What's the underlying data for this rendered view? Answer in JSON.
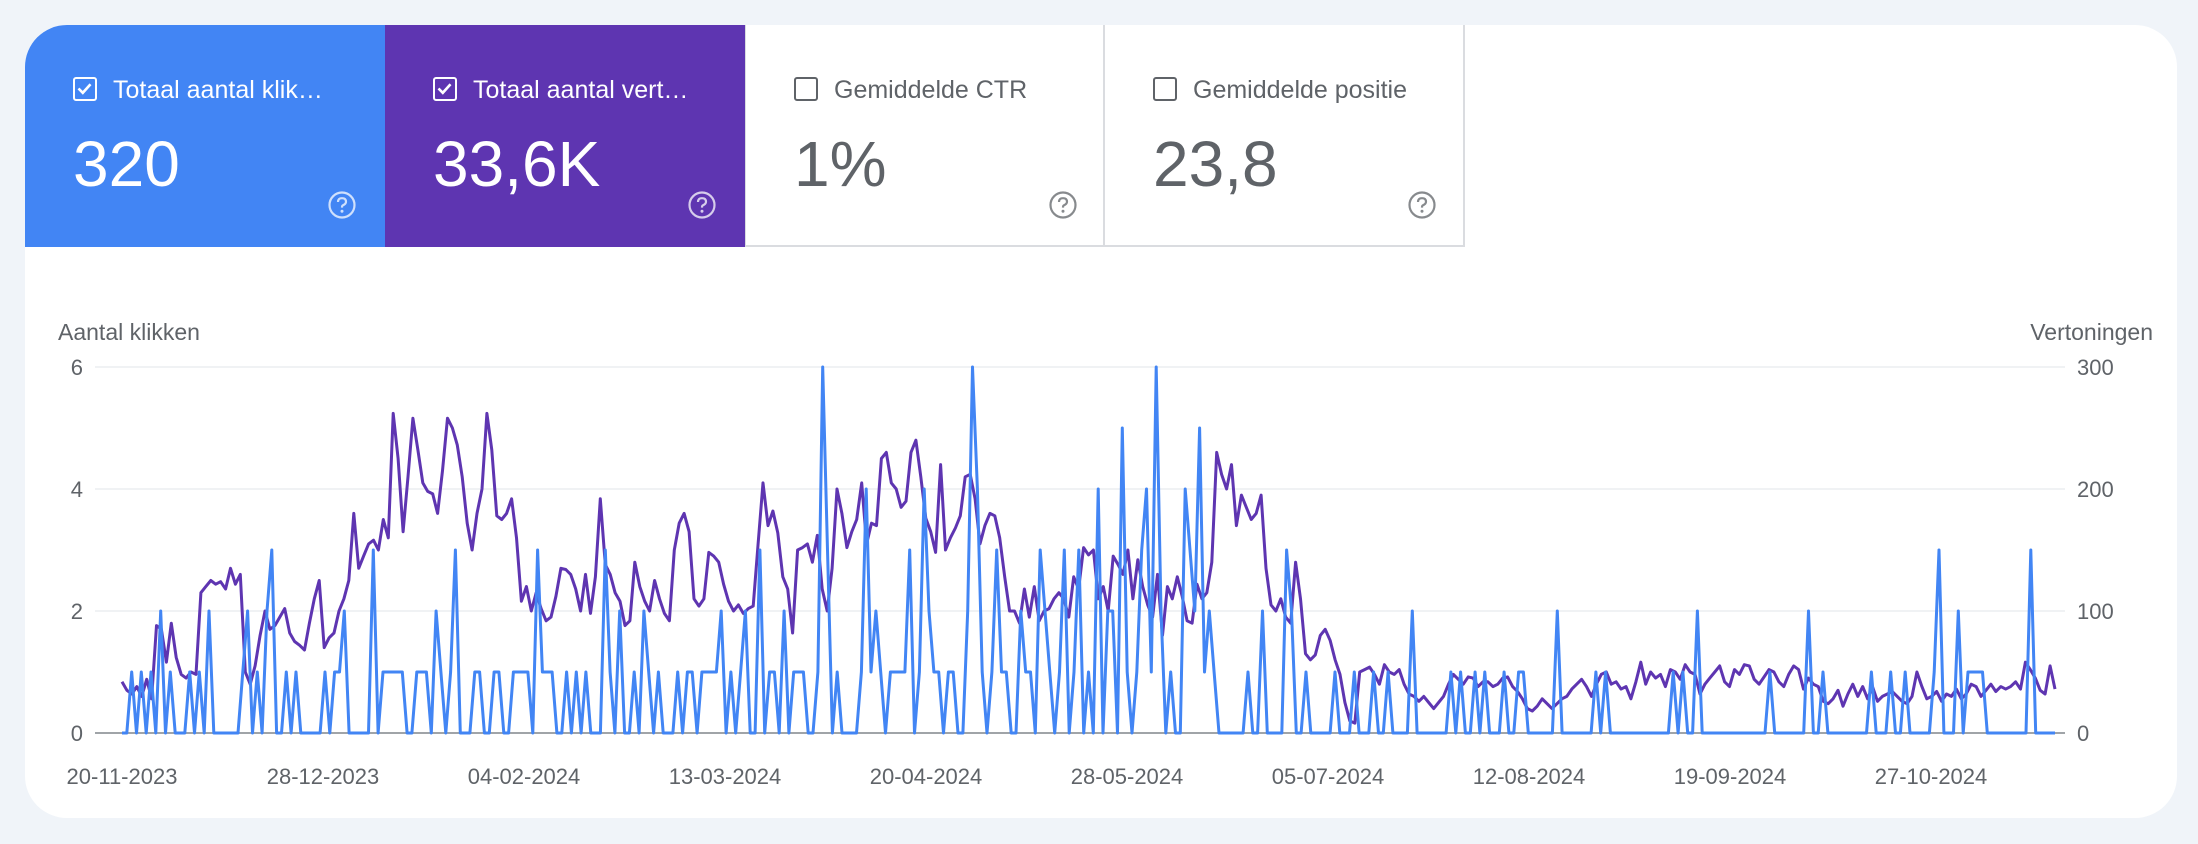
{
  "metrics": {
    "clicks": {
      "label": "Totaal aantal klik…",
      "value": "320",
      "checked": true,
      "color": "#4285f4"
    },
    "impressions": {
      "label": "Totaal aantal vert…",
      "value": "33,6K",
      "checked": true,
      "color": "#5e35b1"
    },
    "ctr": {
      "label": "Gemiddelde CTR",
      "value": "1%",
      "checked": false
    },
    "position": {
      "label": "Gemiddelde positie",
      "value": "23,8",
      "checked": false
    }
  },
  "icons": {
    "checkbox": "checkbox-icon",
    "help": "help-circle-icon"
  },
  "chart_data": {
    "type": "line",
    "y_left_label": "Aantal klikken",
    "y_right_label": "Vertoningen",
    "y_left_ticks": [
      "0",
      "2",
      "4",
      "6"
    ],
    "y_right_ticks": [
      "0",
      "100",
      "200",
      "300"
    ],
    "ylim_left": [
      0,
      6
    ],
    "ylim_right": [
      0,
      300
    ],
    "x_tick_labels": [
      "20-11-2023",
      "28-12-2023",
      "04-02-2024",
      "13-03-2024",
      "20-04-2024",
      "28-05-2024",
      "05-07-2024",
      "12-08-2024",
      "19-09-2024",
      "27-10-2024"
    ],
    "grid": true,
    "series": [
      {
        "name": "Totaal aantal klikken",
        "axis": "left",
        "color": "#4285f4",
        "values": [
          0,
          0,
          1,
          0,
          1,
          0,
          1,
          0,
          2,
          0,
          1,
          0,
          0,
          0,
          1,
          0,
          1,
          0,
          2,
          0,
          0,
          0,
          0,
          0,
          0,
          1,
          2,
          0,
          1,
          0,
          2,
          3,
          0,
          0,
          1,
          0,
          1,
          0,
          0,
          0,
          0,
          0,
          1,
          0,
          1,
          1,
          2,
          0,
          0,
          0,
          0,
          0,
          3,
          0,
          1,
          1,
          1,
          1,
          1,
          0,
          0,
          1,
          1,
          1,
          0,
          2,
          1,
          0,
          1,
          3,
          0,
          0,
          0,
          1,
          1,
          0,
          0,
          1,
          1,
          0,
          0,
          1,
          1,
          1,
          1,
          0,
          3,
          1,
          1,
          1,
          0,
          0,
          1,
          0,
          1,
          0,
          1,
          0,
          0,
          0,
          3,
          1,
          0,
          2,
          0,
          0,
          1,
          0,
          2,
          1,
          0,
          1,
          0,
          0,
          0,
          1,
          0,
          1,
          1,
          0,
          1,
          1,
          1,
          1,
          2,
          0,
          1,
          0,
          1,
          2,
          0,
          0,
          3,
          0,
          1,
          1,
          0,
          2,
          0,
          1,
          1,
          1,
          0,
          0,
          1,
          6,
          3,
          0,
          1,
          0,
          0,
          0,
          0,
          1,
          4,
          1,
          2,
          1,
          0,
          1,
          1,
          1,
          1,
          3,
          0,
          1,
          4,
          2,
          1,
          1,
          0,
          1,
          1,
          0,
          0,
          2,
          6,
          4,
          1,
          0,
          1,
          3,
          1,
          1,
          0,
          0,
          2,
          1,
          1,
          0,
          3,
          2,
          1,
          0,
          1,
          3,
          0,
          1,
          3,
          0,
          1,
          0,
          4,
          0,
          2,
          2,
          0,
          5,
          1,
          0,
          1,
          3,
          4,
          1,
          6,
          2,
          0,
          1,
          0,
          0,
          4,
          3,
          2,
          5,
          1,
          2,
          1,
          0,
          0,
          0,
          0,
          0,
          0,
          1,
          0,
          0,
          2,
          0,
          0,
          0,
          0,
          3,
          2,
          0,
          0,
          1,
          0,
          0,
          0,
          0,
          0,
          1,
          0,
          0,
          0,
          1,
          0,
          0,
          0,
          1,
          0,
          0,
          1,
          0,
          0,
          0,
          0,
          2,
          0,
          0,
          0,
          0,
          0,
          0,
          0,
          1,
          0,
          1,
          0,
          0,
          1,
          0,
          1,
          0,
          0,
          0,
          1,
          0,
          0,
          1,
          1,
          0,
          0,
          0,
          0,
          0,
          0,
          2,
          0,
          0,
          0,
          0,
          0,
          0,
          0,
          1,
          0,
          1,
          0,
          0,
          0,
          0,
          0,
          0,
          0,
          0,
          0,
          0,
          0,
          0,
          0,
          1,
          0,
          1,
          0,
          0,
          2,
          0,
          0,
          0,
          0,
          0,
          0,
          0,
          0,
          0,
          0,
          0,
          0,
          0,
          0,
          1,
          0,
          0,
          0,
          0,
          0,
          0,
          0,
          2,
          0,
          0,
          1,
          0,
          0,
          0,
          0,
          0,
          0,
          0,
          0,
          0,
          1,
          0,
          0,
          0,
          1,
          0,
          0,
          1,
          0,
          0,
          0,
          0,
          0,
          1,
          3,
          0,
          0,
          0,
          2,
          0,
          1,
          1,
          1,
          1,
          0,
          0,
          0,
          0,
          0,
          0,
          0,
          0,
          0,
          3,
          0,
          0,
          0,
          0,
          0
        ],
        "note": ""
      },
      {
        "name": "Totaal aantal vertoningen",
        "axis": "right",
        "color": "#5e35b1",
        "values": [
          42,
          35,
          32,
          38,
          30,
          44,
          28,
          88,
          85,
          58,
          90,
          62,
          48,
          45,
          50,
          48,
          115,
          120,
          125,
          122,
          124,
          118,
          135,
          122,
          130,
          50,
          40,
          55,
          80,
          100,
          85,
          88,
          95,
          102,
          82,
          75,
          72,
          68,
          90,
          110,
          125,
          70,
          78,
          82,
          100,
          110,
          125,
          180,
          135,
          145,
          155,
          158,
          150,
          175,
          160,
          262,
          225,
          165,
          210,
          258,
          232,
          205,
          198,
          196,
          180,
          215,
          258,
          250,
          236,
          210,
          172,
          150,
          180,
          200,
          262,
          232,
          178,
          175,
          180,
          192,
          160,
          108,
          120,
          100,
          115,
          102,
          92,
          95,
          112,
          135,
          134,
          130,
          118,
          100,
          130,
          98,
          128,
          192,
          138,
          130,
          115,
          108,
          88,
          92,
          140,
          120,
          108,
          100,
          125,
          110,
          98,
          92,
          150,
          172,
          180,
          165,
          110,
          104,
          110,
          148,
          145,
          140,
          122,
          108,
          100,
          105,
          98,
          102,
          104,
          155,
          205,
          170,
          182,
          164,
          128,
          118,
          82,
          150,
          152,
          155,
          140,
          162,
          118,
          100,
          135,
          200,
          180,
          152,
          165,
          175,
          205,
          155,
          172,
          170,
          225,
          230,
          205,
          200,
          185,
          190,
          230,
          240,
          210,
          176,
          165,
          148,
          220,
          150,
          160,
          168,
          178,
          210,
          212,
          192,
          155,
          170,
          180,
          178,
          160,
          128,
          100,
          100,
          90,
          118,
          95,
          120,
          92,
          100,
          102,
          110,
          115,
          110,
          95,
          128,
          118,
          152,
          146,
          150,
          110,
          120,
          100,
          145,
          138,
          130,
          150,
          110,
          142,
          120,
          105,
          95,
          130,
          80,
          120,
          110,
          128,
          112,
          92,
          90,
          122,
          110,
          115,
          140,
          230,
          212,
          200,
          220,
          170,
          195,
          185,
          175,
          180,
          195,
          135,
          105,
          100,
          110,
          95,
          90,
          140,
          110,
          65,
          60,
          64,
          80,
          85,
          76,
          60,
          48,
          25,
          10,
          8,
          50,
          52,
          54,
          48,
          40,
          56,
          50,
          48,
          52,
          40,
          32,
          30,
          26,
          30,
          25,
          20,
          25,
          30,
          40,
          48,
          44,
          40,
          46,
          45,
          38,
          42,
          42,
          38,
          40,
          45,
          46,
          38,
          34,
          28,
          20,
          18,
          22,
          28,
          24,
          20,
          24,
          28,
          30,
          36,
          40,
          44,
          38,
          30,
          40,
          48,
          50,
          40,
          42,
          36,
          38,
          28,
          42,
          58,
          40,
          50,
          45,
          48,
          38,
          52,
          50,
          44,
          56,
          50,
          48,
          32,
          40,
          45,
          50,
          55,
          42,
          38,
          52,
          48,
          56,
          55,
          44,
          40,
          46,
          52,
          50,
          42,
          38,
          48,
          55,
          52,
          36,
          45,
          40,
          38,
          26,
          24,
          28,
          35,
          22,
          32,
          40,
          30,
          38,
          28,
          38,
          26,
          30,
          32,
          34,
          30,
          26,
          24,
          30,
          50,
          38,
          28,
          30,
          34,
          26,
          32,
          30,
          36,
          28,
          32,
          40,
          38,
          30,
          35,
          40,
          34,
          38,
          36,
          38,
          42,
          36,
          58,
          52,
          45,
          35,
          32,
          55,
          36
        ]
      }
    ]
  }
}
